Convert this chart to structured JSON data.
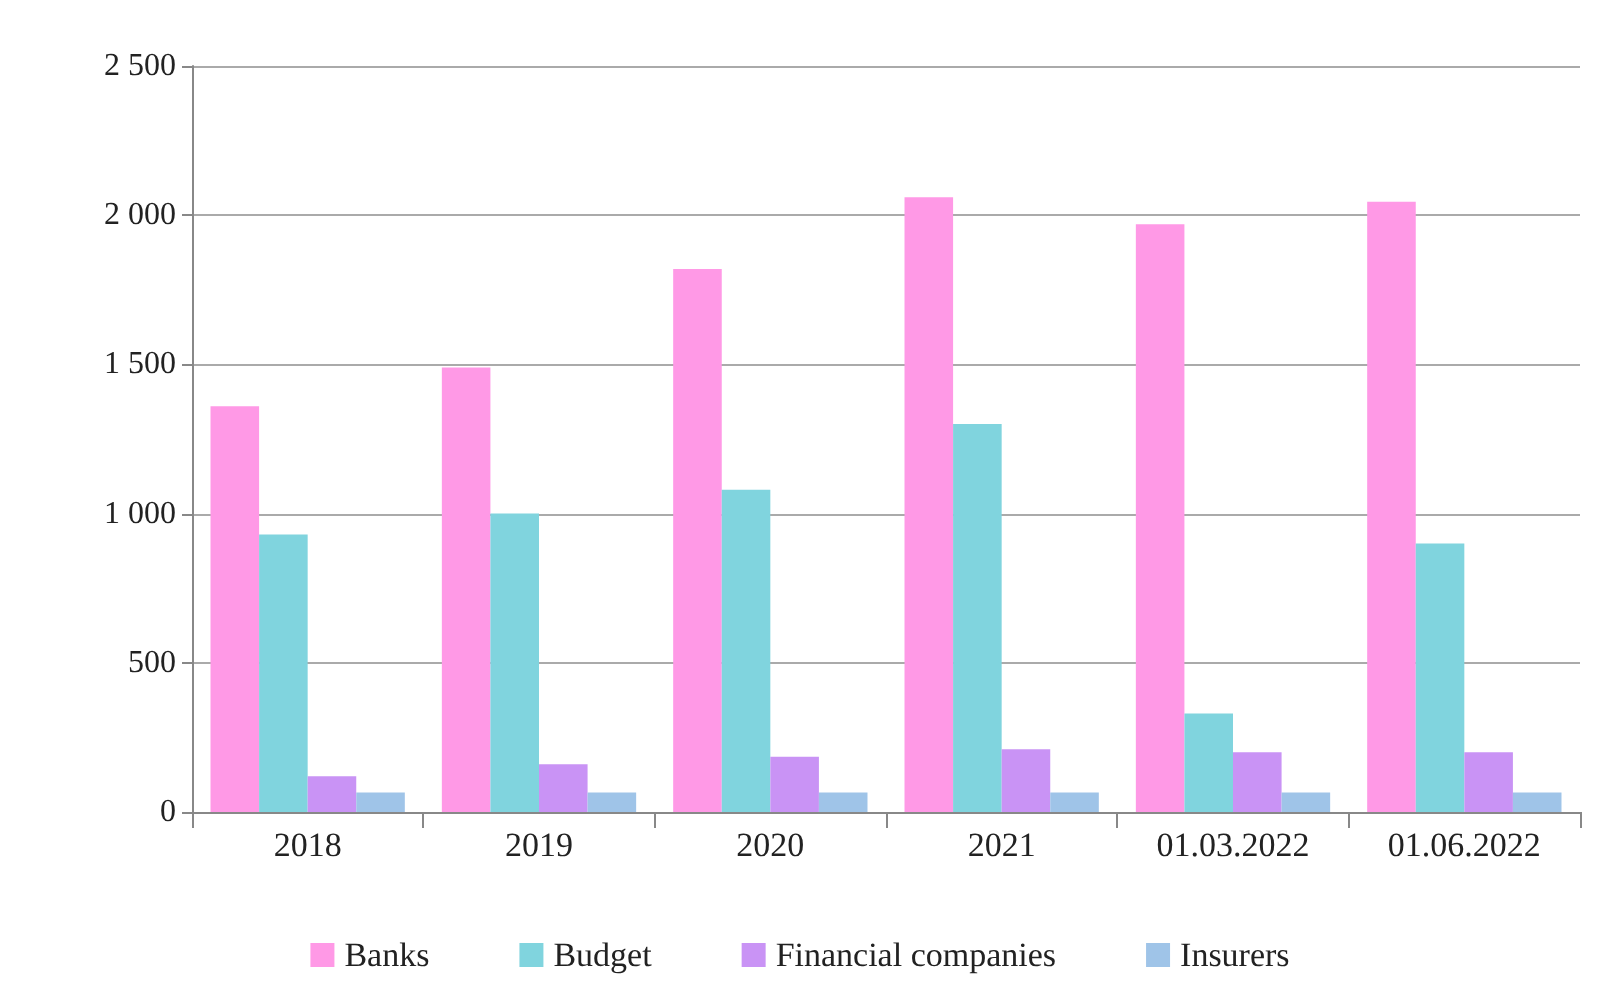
{
  "chart_data": {
    "type": "bar",
    "categories": [
      "2018",
      "2019",
      "2020",
      "2021",
      "01.03.2022",
      "01.06.2022"
    ],
    "series": [
      {
        "name": "Banks",
        "color": "#ff99e6",
        "values": [
          1360,
          1490,
          1820,
          2060,
          1970,
          2045
        ]
      },
      {
        "name": "Budget",
        "color": "#80d4de",
        "values": [
          930,
          1000,
          1080,
          1300,
          330,
          900
        ]
      },
      {
        "name": "Financial companies",
        "color": "#c993f5",
        "values": [
          120,
          160,
          185,
          210,
          200,
          200
        ]
      },
      {
        "name": "Insurers",
        "color": "#9fc4e8",
        "values": [
          65,
          65,
          65,
          65,
          65,
          65
        ]
      }
    ],
    "ylim": [
      0,
      2500
    ],
    "yticks": [
      0,
      500,
      {
        "value": 1000,
        "label": "1 000"
      },
      {
        "value": 1500,
        "label": "1 500"
      },
      {
        "value": 2000,
        "label": "2 000"
      },
      {
        "value": 2500,
        "label": "2 500"
      }
    ],
    "grid": "y",
    "legend": "bottom"
  }
}
